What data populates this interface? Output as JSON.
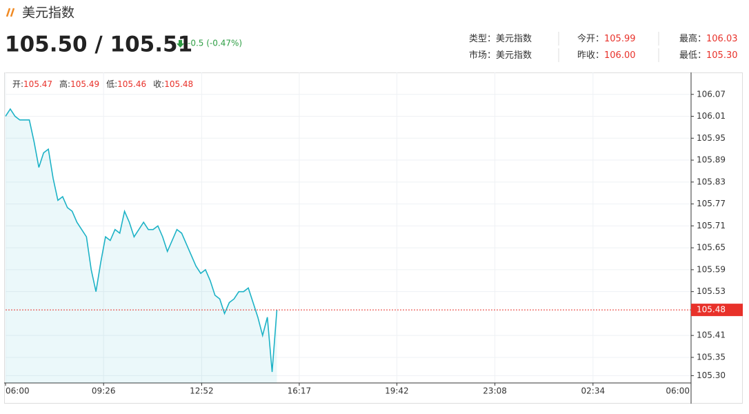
{
  "header": {
    "title": "美元指数",
    "price": "105.50 / 105.51",
    "change": "-0.5 (-0.47%)",
    "info": [
      [
        {
          "label": "类型：",
          "value": "美元指数"
        },
        {
          "label": "今开：",
          "value": "105.99"
        },
        {
          "label": "最高：",
          "value": "106.03"
        }
      ],
      [
        {
          "label": "市场：",
          "value": "美元指数"
        },
        {
          "label": "昨收：",
          "value": "106.00"
        },
        {
          "label": "最低：",
          "value": "105.30"
        }
      ]
    ]
  },
  "ohlc": [
    {
      "label": "开:",
      "value": "105.47"
    },
    {
      "label": "高:",
      "value": "105.49"
    },
    {
      "label": "低:",
      "value": "105.46"
    },
    {
      "label": "收:",
      "value": "105.48"
    }
  ],
  "chart_data": {
    "type": "area",
    "x": [
      0,
      10,
      20,
      30,
      40,
      50,
      60,
      70,
      80,
      90,
      100,
      110,
      120,
      130,
      140,
      150,
      160,
      170,
      180,
      190,
      200,
      210,
      220,
      230,
      240,
      250,
      260,
      270,
      280,
      290,
      300,
      310,
      320,
      330,
      340,
      350,
      360,
      370,
      380,
      390,
      400,
      410,
      420,
      430,
      440,
      450,
      460,
      470,
      480,
      490,
      500,
      510,
      520,
      530,
      540,
      550,
      560,
      570
    ],
    "series": [
      {
        "name": "美元指数",
        "color": "#1cb2c6",
        "values": [
          106.01,
          106.03,
          106.01,
          106.0,
          106.0,
          106.0,
          105.94,
          105.87,
          105.91,
          105.92,
          105.84,
          105.78,
          105.79,
          105.76,
          105.75,
          105.72,
          105.7,
          105.68,
          105.59,
          105.53,
          105.61,
          105.68,
          105.67,
          105.7,
          105.69,
          105.75,
          105.72,
          105.68,
          105.7,
          105.72,
          105.7,
          105.7,
          105.71,
          105.68,
          105.64,
          105.67,
          105.7,
          105.69,
          105.66,
          105.63,
          105.6,
          105.58,
          105.59,
          105.56,
          105.52,
          105.51,
          105.47,
          105.5,
          105.51,
          105.53,
          105.53,
          105.54,
          105.5,
          105.46,
          105.41,
          105.46,
          105.31,
          105.48
        ]
      }
    ],
    "xlim": [
      0,
      1440
    ],
    "xticks": [
      {
        "value": 0,
        "label": "06:00"
      },
      {
        "value": 206,
        "label": "09:26"
      },
      {
        "value": 412,
        "label": "12:52"
      },
      {
        "value": 617,
        "label": "16:17"
      },
      {
        "value": 822,
        "label": "19:42"
      },
      {
        "value": 1028,
        "label": "23:08"
      },
      {
        "value": 1234,
        "label": "02:34"
      },
      {
        "value": 1440,
        "label": "06:00"
      }
    ],
    "ylim": [
      105.28,
      106.13
    ],
    "yticks": [
      {
        "value": 106.07,
        "label": "106.07"
      },
      {
        "value": 106.01,
        "label": "106.01"
      },
      {
        "value": 105.95,
        "label": "105.95"
      },
      {
        "value": 105.89,
        "label": "105.89"
      },
      {
        "value": 105.83,
        "label": "105.83"
      },
      {
        "value": 105.77,
        "label": "105.77"
      },
      {
        "value": 105.71,
        "label": "105.71"
      },
      {
        "value": 105.65,
        "label": "105.65"
      },
      {
        "value": 105.59,
        "label": "105.59"
      },
      {
        "value": 105.53,
        "label": "105.53"
      },
      {
        "value": 105.41,
        "label": "105.41"
      },
      {
        "value": 105.35,
        "label": "105.35"
      },
      {
        "value": 105.3,
        "label": "105.30"
      }
    ],
    "last_price": {
      "value": 105.48,
      "label": "105.48",
      "color": "#e8312a"
    },
    "grid": true
  }
}
